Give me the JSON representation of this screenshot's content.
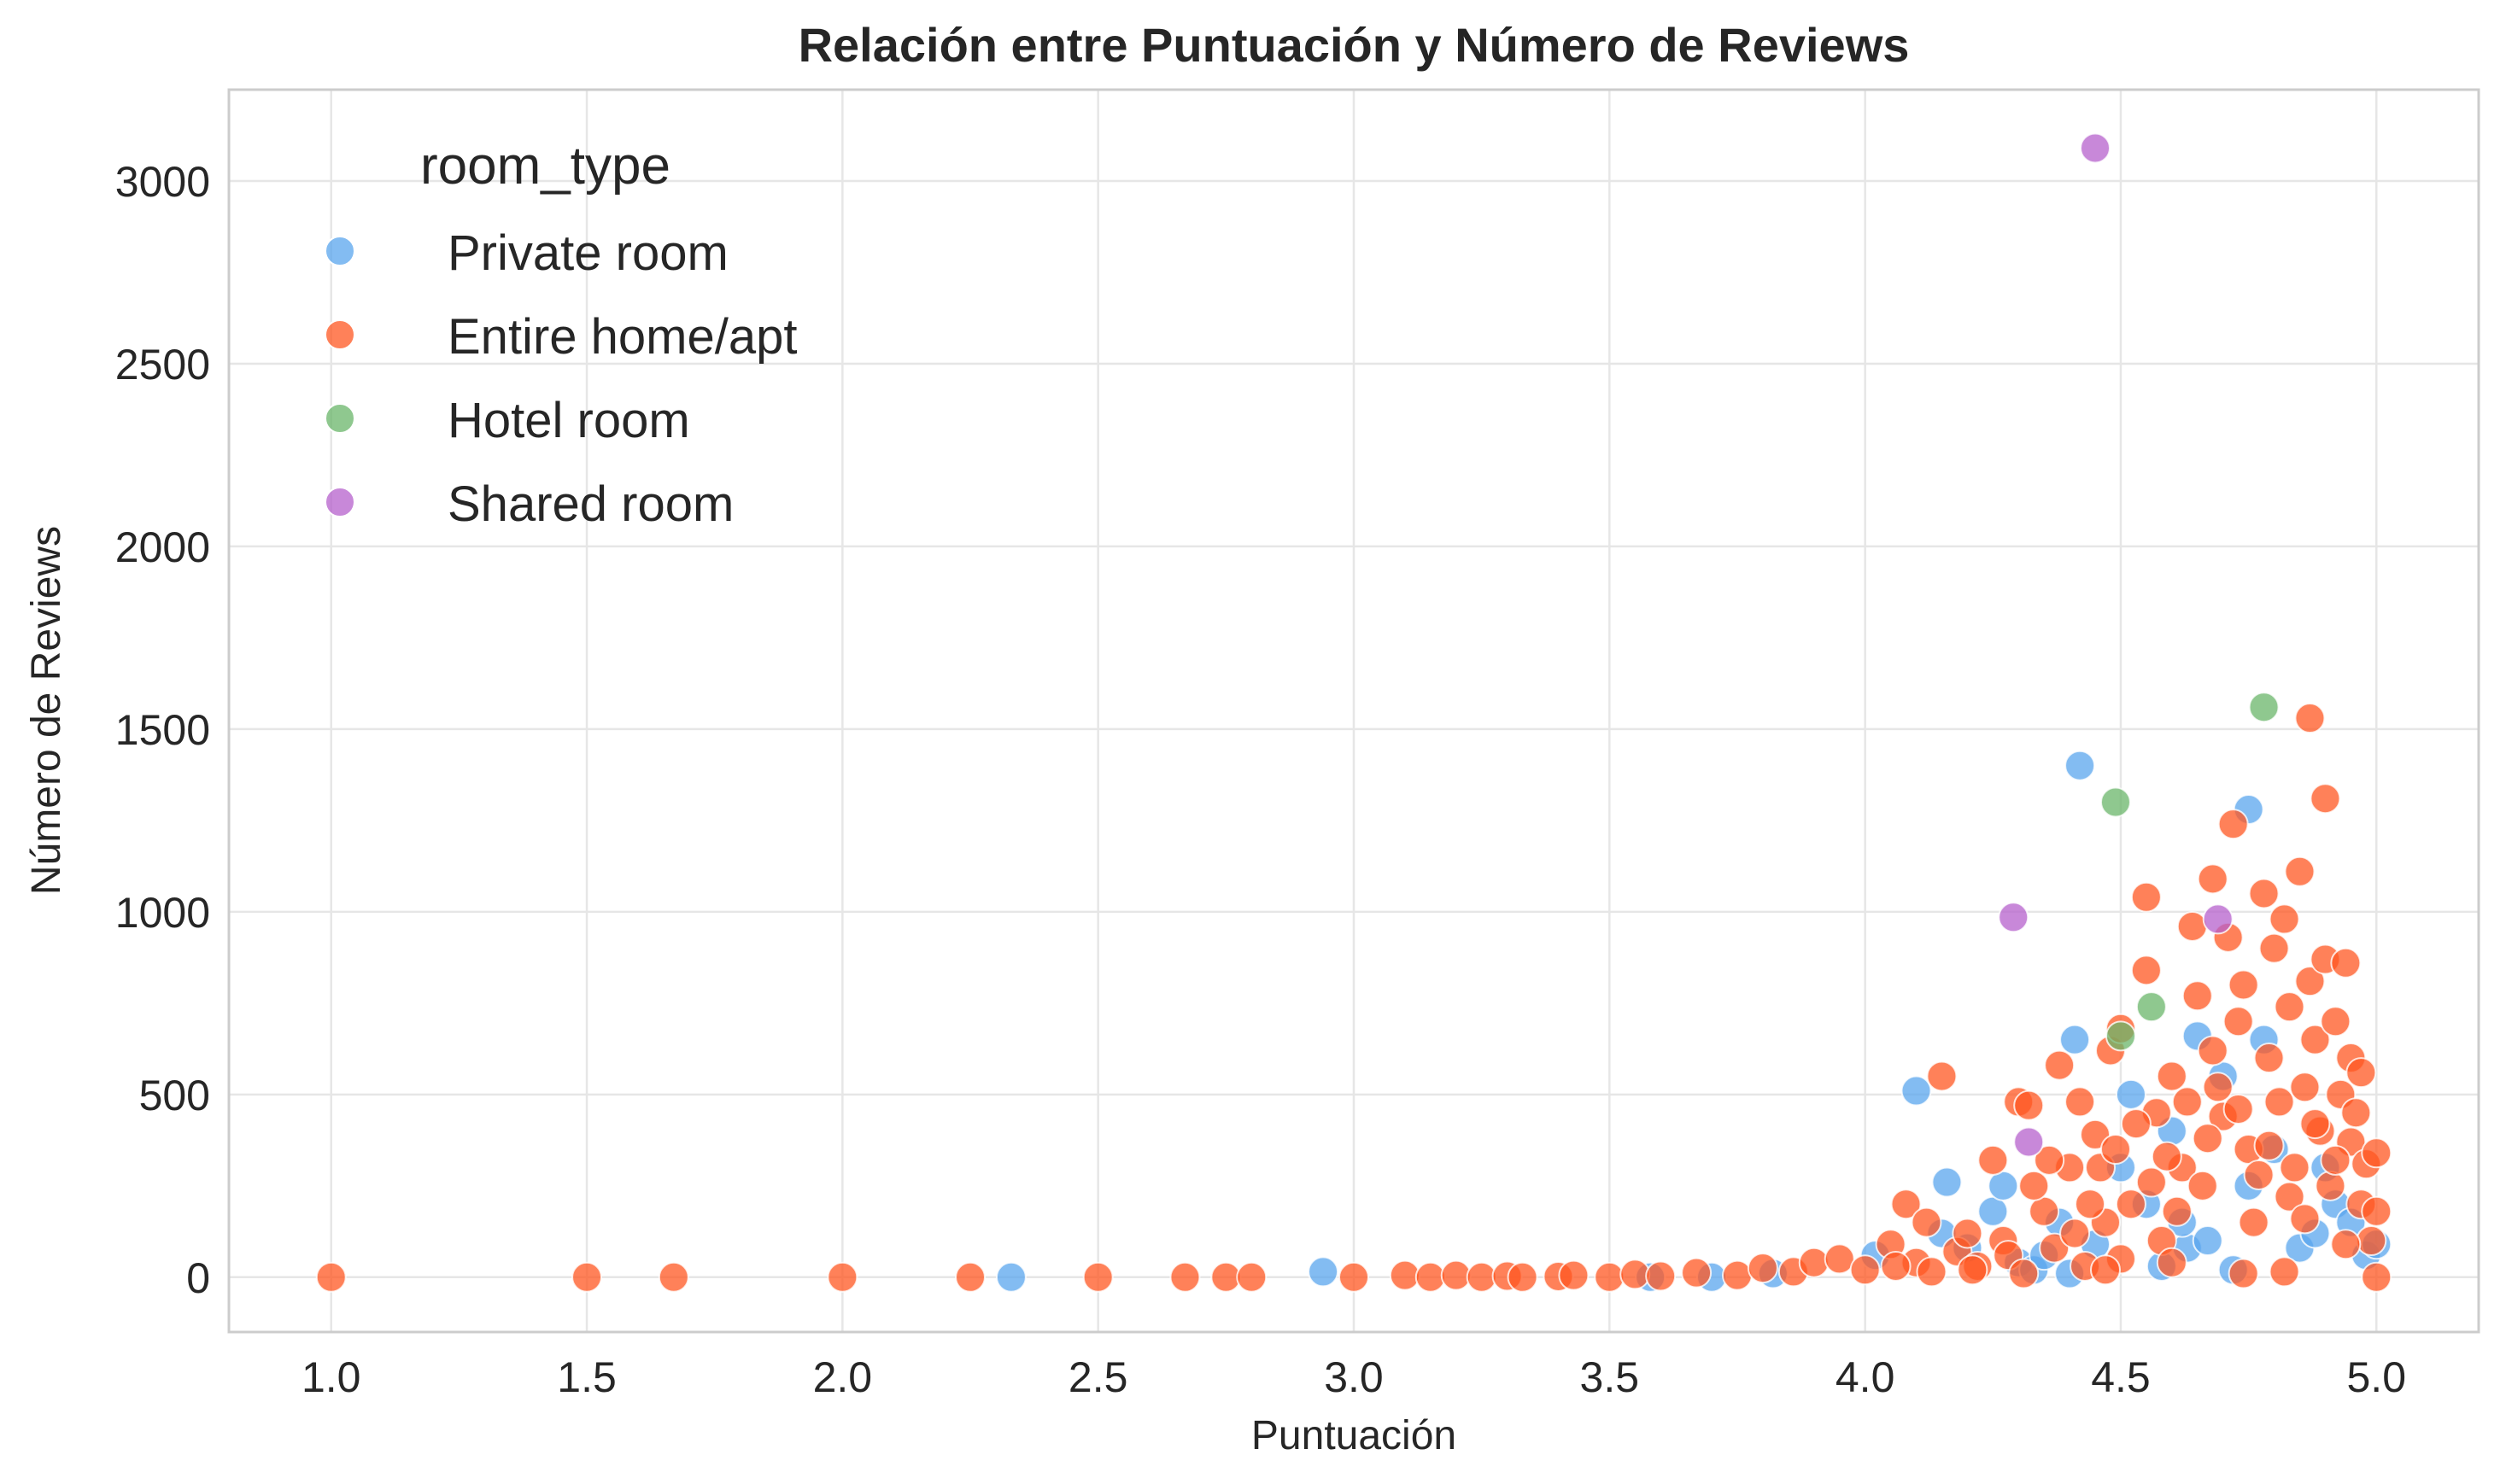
{
  "chart_data": {
    "type": "scatter",
    "title": "Relación entre Puntuación y Número de Reviews",
    "xlabel": "Puntuación",
    "ylabel": "Número de Reviews",
    "xlim": [
      0.8,
      5.2
    ],
    "ylim": [
      -150,
      3250
    ],
    "xticks": [
      1.0,
      1.5,
      2.0,
      2.5,
      3.0,
      3.5,
      4.0,
      4.5,
      5.0
    ],
    "xtick_labels": [
      "1.0",
      "1.5",
      "2.0",
      "2.5",
      "3.0",
      "3.5",
      "4.0",
      "4.5",
      "5.0"
    ],
    "yticks": [
      0,
      500,
      1000,
      1500,
      2000,
      2500,
      3000
    ],
    "ytick_labels": [
      "0",
      "500",
      "1000",
      "1500",
      "2000",
      "2500",
      "3000"
    ],
    "grid": true,
    "legend": {
      "title": "room_type",
      "position": "top-left"
    },
    "series": [
      {
        "name": "Private room",
        "color": "#5aa5ee",
        "points": [
          [
            2.33,
            0
          ],
          [
            2.94,
            15
          ],
          [
            3.58,
            0
          ],
          [
            3.7,
            0
          ],
          [
            3.82,
            10
          ],
          [
            4.02,
            60
          ],
          [
            4.1,
            510
          ],
          [
            4.15,
            120
          ],
          [
            4.16,
            260
          ],
          [
            4.2,
            80
          ],
          [
            4.25,
            180
          ],
          [
            4.27,
            250
          ],
          [
            4.3,
            40
          ],
          [
            4.33,
            20
          ],
          [
            4.38,
            150
          ],
          [
            4.4,
            10
          ],
          [
            4.41,
            650
          ],
          [
            4.42,
            1400
          ],
          [
            4.45,
            90
          ],
          [
            4.5,
            300
          ],
          [
            4.52,
            500
          ],
          [
            4.55,
            200
          ],
          [
            4.58,
            30
          ],
          [
            4.6,
            400
          ],
          [
            4.63,
            80
          ],
          [
            4.65,
            660
          ],
          [
            4.67,
            100
          ],
          [
            4.7,
            550
          ],
          [
            4.72,
            20
          ],
          [
            4.75,
            1280
          ],
          [
            4.75,
            250
          ],
          [
            4.78,
            650
          ],
          [
            4.8,
            350
          ],
          [
            4.85,
            80
          ],
          [
            4.88,
            120
          ],
          [
            4.9,
            300
          ],
          [
            4.92,
            200
          ],
          [
            4.95,
            150
          ],
          [
            4.98,
            60
          ],
          [
            5.0,
            90
          ],
          [
            4.35,
            60
          ],
          [
            4.62,
            150
          ]
        ]
      },
      {
        "name": "Entire home/apt",
        "color": "#ff5722",
        "points": [
          [
            1.0,
            0
          ],
          [
            1.5,
            0
          ],
          [
            1.67,
            0
          ],
          [
            2.0,
            0
          ],
          [
            2.25,
            0
          ],
          [
            2.5,
            0
          ],
          [
            2.67,
            0
          ],
          [
            2.75,
            0
          ],
          [
            2.8,
            0
          ],
          [
            3.0,
            0
          ],
          [
            3.1,
            5
          ],
          [
            3.15,
            0
          ],
          [
            3.2,
            5
          ],
          [
            3.25,
            0
          ],
          [
            3.3,
            3
          ],
          [
            3.33,
            0
          ],
          [
            3.4,
            2
          ],
          [
            3.43,
            5
          ],
          [
            3.5,
            0
          ],
          [
            3.55,
            8
          ],
          [
            3.6,
            3
          ],
          [
            3.67,
            12
          ],
          [
            3.75,
            5
          ],
          [
            3.8,
            25
          ],
          [
            3.86,
            15
          ],
          [
            3.9,
            40
          ],
          [
            3.95,
            50
          ],
          [
            4.0,
            20
          ],
          [
            4.05,
            90
          ],
          [
            4.08,
            200
          ],
          [
            4.1,
            40
          ],
          [
            4.12,
            150
          ],
          [
            4.15,
            550
          ],
          [
            4.18,
            70
          ],
          [
            4.2,
            120
          ],
          [
            4.22,
            30
          ],
          [
            4.25,
            320
          ],
          [
            4.27,
            100
          ],
          [
            4.3,
            480
          ],
          [
            4.32,
            470
          ],
          [
            4.35,
            180
          ],
          [
            4.37,
            80
          ],
          [
            4.38,
            580
          ],
          [
            4.4,
            300
          ],
          [
            4.42,
            480
          ],
          [
            4.43,
            30
          ],
          [
            4.45,
            390
          ],
          [
            4.47,
            150
          ],
          [
            4.48,
            620
          ],
          [
            4.5,
            680
          ],
          [
            4.5,
            50
          ],
          [
            4.52,
            200
          ],
          [
            4.55,
            1040
          ],
          [
            4.55,
            840
          ],
          [
            4.57,
            450
          ],
          [
            4.58,
            100
          ],
          [
            4.6,
            550
          ],
          [
            4.62,
            300
          ],
          [
            4.64,
            960
          ],
          [
            4.65,
            770
          ],
          [
            4.66,
            250
          ],
          [
            4.68,
            1090
          ],
          [
            4.68,
            620
          ],
          [
            4.7,
            440
          ],
          [
            4.71,
            930
          ],
          [
            4.72,
            1240
          ],
          [
            4.73,
            700
          ],
          [
            4.74,
            800
          ],
          [
            4.75,
            350
          ],
          [
            4.76,
            150
          ],
          [
            4.78,
            1050
          ],
          [
            4.79,
            600
          ],
          [
            4.8,
            900
          ],
          [
            4.81,
            480
          ],
          [
            4.82,
            980
          ],
          [
            4.83,
            740
          ],
          [
            4.84,
            300
          ],
          [
            4.85,
            1110
          ],
          [
            4.86,
            520
          ],
          [
            4.87,
            1530
          ],
          [
            4.87,
            810
          ],
          [
            4.88,
            650
          ],
          [
            4.89,
            400
          ],
          [
            4.9,
            1310
          ],
          [
            4.9,
            870
          ],
          [
            4.91,
            250
          ],
          [
            4.92,
            700
          ],
          [
            4.93,
            500
          ],
          [
            4.94,
            860
          ],
          [
            4.95,
            600
          ],
          [
            4.95,
            370
          ],
          [
            4.96,
            450
          ],
          [
            4.97,
            200
          ],
          [
            4.98,
            310
          ],
          [
            4.99,
            100
          ],
          [
            5.0,
            0
          ],
          [
            5.0,
            340
          ],
          [
            5.0,
            180
          ],
          [
            4.28,
            60
          ],
          [
            4.33,
            250
          ],
          [
            4.36,
            320
          ],
          [
            4.41,
            120
          ],
          [
            4.44,
            200
          ],
          [
            4.46,
            300
          ],
          [
            4.49,
            350
          ],
          [
            4.53,
            420
          ],
          [
            4.56,
            260
          ],
          [
            4.59,
            330
          ],
          [
            4.61,
            180
          ],
          [
            4.63,
            480
          ],
          [
            4.67,
            380
          ],
          [
            4.69,
            520
          ],
          [
            4.73,
            460
          ],
          [
            4.77,
            280
          ],
          [
            4.79,
            360
          ],
          [
            4.83,
            220
          ],
          [
            4.86,
            160
          ],
          [
            4.88,
            420
          ],
          [
            4.92,
            320
          ],
          [
            4.94,
            90
          ],
          [
            4.97,
            560
          ],
          [
            4.31,
            10
          ],
          [
            4.47,
            20
          ],
          [
            4.6,
            40
          ],
          [
            4.74,
            10
          ],
          [
            4.82,
            15
          ],
          [
            4.21,
            20
          ],
          [
            4.13,
            15
          ],
          [
            4.06,
            30
          ]
        ]
      },
      {
        "name": "Hotel room",
        "color": "#6ab56a",
        "points": [
          [
            4.78,
            1560
          ],
          [
            4.49,
            1300
          ],
          [
            4.56,
            740
          ],
          [
            4.5,
            660
          ]
        ]
      },
      {
        "name": "Shared room",
        "color": "#b560cc",
        "points": [
          [
            4.45,
            3090
          ],
          [
            4.29,
            985
          ],
          [
            4.69,
            980
          ],
          [
            4.32,
            370
          ]
        ]
      }
    ]
  }
}
